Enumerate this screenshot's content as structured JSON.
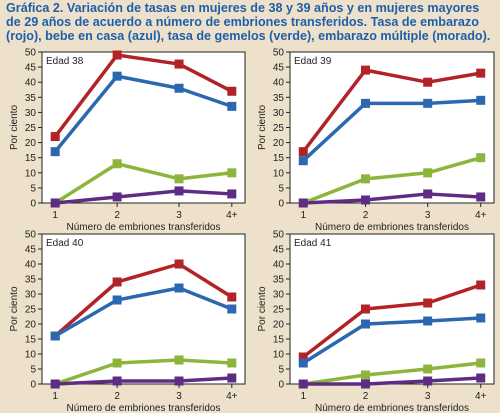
{
  "title": "Gráfica 2. Variación de tasas en mujeres de 38 y 39 años y en mujeres mayores de 29 años de acuerdo a número de embriones transferidos. Tasa de embarazo (rojo), bebe en casa  (azul), tasa de gemelos (verde), embarazo múltiple (morado).",
  "colors": {
    "background": "#ede1cb",
    "panel": "#ffffff",
    "title": "#1f5ea8",
    "red": "#b22226",
    "blue": "#2b68b0",
    "green": "#8db53c",
    "purple": "#5e2c83"
  },
  "chart_data": [
    {
      "type": "line",
      "panel_label": "Edad 38",
      "categories": [
        "1",
        "2",
        "3",
        "4+"
      ],
      "xlabel": "Número de embriones transferidos",
      "ylabel": "Por ciento",
      "ylim": [
        0,
        50
      ],
      "yticks": [
        0,
        5,
        10,
        15,
        20,
        25,
        30,
        35,
        40,
        45,
        50
      ],
      "grid": false,
      "series": [
        {
          "color": "red",
          "values": [
            22,
            49,
            46,
            37
          ]
        },
        {
          "color": "blue",
          "values": [
            17,
            42,
            38,
            32
          ]
        },
        {
          "color": "green",
          "values": [
            0,
            13,
            8,
            10
          ]
        },
        {
          "color": "purple",
          "values": [
            0,
            2,
            4,
            3
          ]
        }
      ]
    },
    {
      "type": "line",
      "panel_label": "Edad 39",
      "categories": [
        "1",
        "2",
        "3",
        "4+"
      ],
      "xlabel": "Número de embriones transferidos",
      "ylabel": "Por ciento",
      "ylim": [
        0,
        50
      ],
      "yticks": [
        0,
        5,
        10,
        15,
        20,
        25,
        30,
        35,
        40,
        45,
        50
      ],
      "grid": false,
      "series": [
        {
          "color": "red",
          "values": [
            17,
            44,
            40,
            43
          ]
        },
        {
          "color": "blue",
          "values": [
            14,
            33,
            33,
            34
          ]
        },
        {
          "color": "green",
          "values": [
            0,
            8,
            10,
            15
          ]
        },
        {
          "color": "purple",
          "values": [
            0,
            1,
            3,
            2
          ]
        }
      ]
    },
    {
      "type": "line",
      "panel_label": "Edad 40",
      "categories": [
        "1",
        "2",
        "3",
        "4+"
      ],
      "xlabel": "Número de embriones transferidos",
      "ylabel": "Por ciento",
      "ylim": [
        0,
        50
      ],
      "yticks": [
        0,
        5,
        10,
        15,
        20,
        25,
        30,
        35,
        40,
        45,
        50
      ],
      "grid": false,
      "series": [
        {
          "color": "red",
          "values": [
            16,
            34,
            40,
            29
          ]
        },
        {
          "color": "blue",
          "values": [
            16,
            28,
            32,
            25
          ]
        },
        {
          "color": "green",
          "values": [
            0,
            7,
            8,
            7
          ]
        },
        {
          "color": "purple",
          "values": [
            0,
            1,
            1,
            2
          ]
        }
      ]
    },
    {
      "type": "line",
      "panel_label": "Edad 41",
      "categories": [
        "1",
        "2",
        "3",
        "4+"
      ],
      "xlabel": "Número de embriones transferidos",
      "ylabel": "Por ciento",
      "ylim": [
        0,
        50
      ],
      "yticks": [
        0,
        5,
        10,
        15,
        20,
        25,
        30,
        35,
        40,
        45,
        50
      ],
      "grid": false,
      "series": [
        {
          "color": "red",
          "values": [
            9,
            25,
            27,
            33
          ]
        },
        {
          "color": "blue",
          "values": [
            7,
            20,
            21,
            22
          ]
        },
        {
          "color": "green",
          "values": [
            0,
            3,
            5,
            7
          ]
        },
        {
          "color": "purple",
          "values": [
            0,
            0,
            1,
            2
          ]
        }
      ]
    }
  ]
}
